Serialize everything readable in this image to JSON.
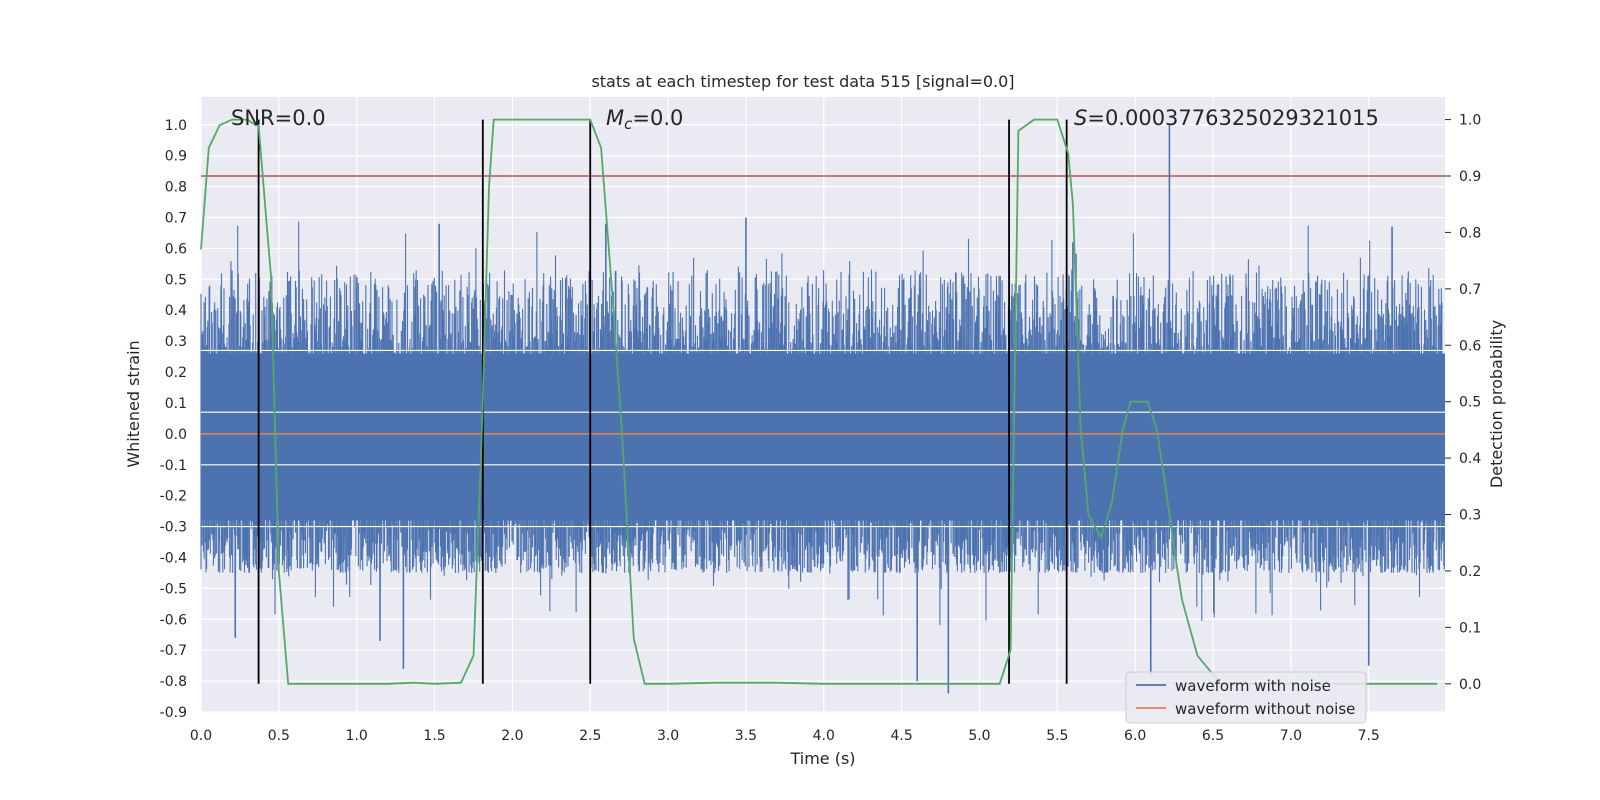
{
  "chart_data": {
    "type": "line",
    "title": "stats at each timestep for test data 515 [signal=0.0]",
    "xlabel": "Time (s)",
    "ylabel": "Whitened strain",
    "y2label": "Detection probability",
    "xlim": [
      0.0,
      7.99
    ],
    "ylim": [
      -0.9,
      1.09
    ],
    "y2lim": [
      -0.05,
      1.04
    ],
    "x_ticks": [
      0.0,
      0.5,
      1.0,
      1.5,
      2.0,
      2.5,
      3.0,
      3.5,
      4.0,
      4.5,
      5.0,
      5.5,
      6.0,
      6.5,
      7.0,
      7.5
    ],
    "y_ticks": [
      -0.9,
      -0.8,
      -0.7,
      -0.6,
      -0.5,
      -0.4,
      -0.3,
      -0.2,
      -0.1,
      0.0,
      0.1,
      0.2,
      0.3,
      0.4,
      0.5,
      0.6,
      0.7,
      0.8,
      0.9,
      1.0
    ],
    "y2_ticks": [
      0.0,
      0.1,
      0.2,
      0.3,
      0.4,
      0.5,
      0.6,
      0.7,
      0.8,
      0.9,
      1.0
    ],
    "grid": true,
    "legend_position": "lower-right",
    "annotations": {
      "snr": "SNR=0.0",
      "mc_symbol": "M",
      "mc_sub": "c",
      "mc_value": "=0.0",
      "s_symbol": "S",
      "s_value": "=0.0003776325029321015"
    },
    "series": [
      {
        "name": "waveform with noise",
        "axis": "left",
        "color": "#4c72b0",
        "style": "noise",
        "envelope_upper": 0.45,
        "envelope_lower": -0.4,
        "peaks": [
          [
            0.37,
            -0.8
          ],
          [
            0.22,
            -0.66
          ],
          [
            1.3,
            -0.76
          ],
          [
            1.15,
            -0.67
          ],
          [
            1.53,
            0.68
          ],
          [
            2.5,
            0.78
          ],
          [
            2.6,
            0.68
          ],
          [
            3.5,
            0.7
          ],
          [
            4.8,
            -0.84
          ],
          [
            4.6,
            -0.8
          ],
          [
            6.22,
            1.0
          ],
          [
            6.1,
            -0.78
          ],
          [
            7.5,
            -0.75
          ],
          [
            7.65,
            0.67
          ],
          [
            5.6,
            0.62
          ]
        ]
      },
      {
        "name": "waveform without noise",
        "axis": "left",
        "color": "#dd8452",
        "x": [
          0.0,
          7.99
        ],
        "y": [
          0.0,
          0.0
        ]
      },
      {
        "name": "detection probability",
        "axis": "right",
        "color": "#55a868",
        "x": [
          0.0,
          0.05,
          0.12,
          0.2,
          0.3,
          0.35,
          0.37,
          0.42,
          0.45,
          0.5,
          0.56,
          0.7,
          1.0,
          1.2,
          1.37,
          1.5,
          1.67,
          1.75,
          1.8,
          1.85,
          1.88,
          1.92,
          2.0,
          2.3,
          2.45,
          2.5,
          2.57,
          2.65,
          2.7,
          2.78,
          2.85,
          3.0,
          3.3,
          3.7,
          4.0,
          4.5,
          5.0,
          5.13,
          5.2,
          5.25,
          5.35,
          5.5,
          5.57,
          5.6,
          5.65,
          5.7,
          5.78,
          5.85,
          5.92,
          5.97,
          6.02,
          6.08,
          6.14,
          6.2,
          6.25,
          6.3,
          6.4,
          6.55,
          7.0,
          7.5,
          7.94
        ],
        "y": [
          0.77,
          0.95,
          0.99,
          1.0,
          1.0,
          0.99,
          0.99,
          0.82,
          0.72,
          0.2,
          0.0,
          0.0,
          0.0,
          0.0,
          0.002,
          0.0,
          0.002,
          0.05,
          0.42,
          0.88,
          1.0,
          1.0,
          1.0,
          1.0,
          1.0,
          1.0,
          0.95,
          0.66,
          0.46,
          0.08,
          0.0,
          0.0,
          0.002,
          0.002,
          0.0,
          0.0,
          0.0,
          0.0,
          0.06,
          0.98,
          1.0,
          1.0,
          0.94,
          0.85,
          0.45,
          0.3,
          0.26,
          0.32,
          0.45,
          0.5,
          0.5,
          0.5,
          0.45,
          0.34,
          0.24,
          0.15,
          0.05,
          0.0,
          0.0,
          0.0,
          0.0
        ]
      }
    ],
    "vertical_markers": {
      "color": "#000000",
      "x": [
        0.37,
        1.81,
        2.5,
        5.19,
        5.56
      ],
      "y_top": 1.0,
      "y_bottom": 0.0
    },
    "threshold_line": {
      "color": "#c44e52",
      "y": 0.9
    }
  }
}
